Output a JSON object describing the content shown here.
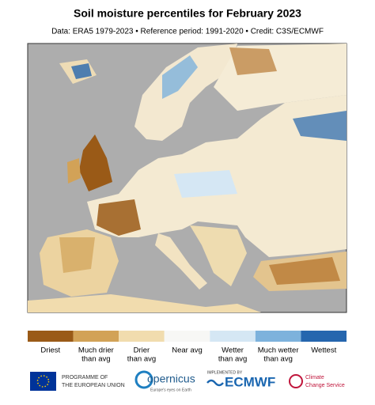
{
  "header": {
    "title": "Soil moisture percentiles for February 2023",
    "subtitle": "Data: ERA5 1979-2023 • Reference period: 1991-2020 • Credit: C3S/ECMWF"
  },
  "legend": {
    "items": [
      {
        "lines": [
          "Driest"
        ],
        "color": "#9a5a17"
      },
      {
        "lines": [
          "Much drier",
          "than avg"
        ],
        "color": "#d2a257"
      },
      {
        "lines": [
          "Drier",
          "than avg"
        ],
        "color": "#f1dcae"
      },
      {
        "lines": [
          "Near avg"
        ],
        "color": "#f7f7f5"
      },
      {
        "lines": [
          "Wetter",
          "than avg"
        ],
        "color": "#d5e7f4"
      },
      {
        "lines": [
          "Much wetter",
          "than avg"
        ],
        "color": "#7db2dc"
      },
      {
        "lines": [
          "Wettest"
        ],
        "color": "#2566ae"
      }
    ]
  },
  "logos": {
    "eu": [
      "PROGRAMME OF",
      "THE EUROPEAN UNION"
    ],
    "copernicus": "opernicus",
    "copernicus_tagline": "Europe's eyes on Earth",
    "ecmwf_note": "IMPLEMENTED BY",
    "ecmwf": "ECMWF",
    "c3s": [
      "Climate",
      "Change Service"
    ]
  }
}
